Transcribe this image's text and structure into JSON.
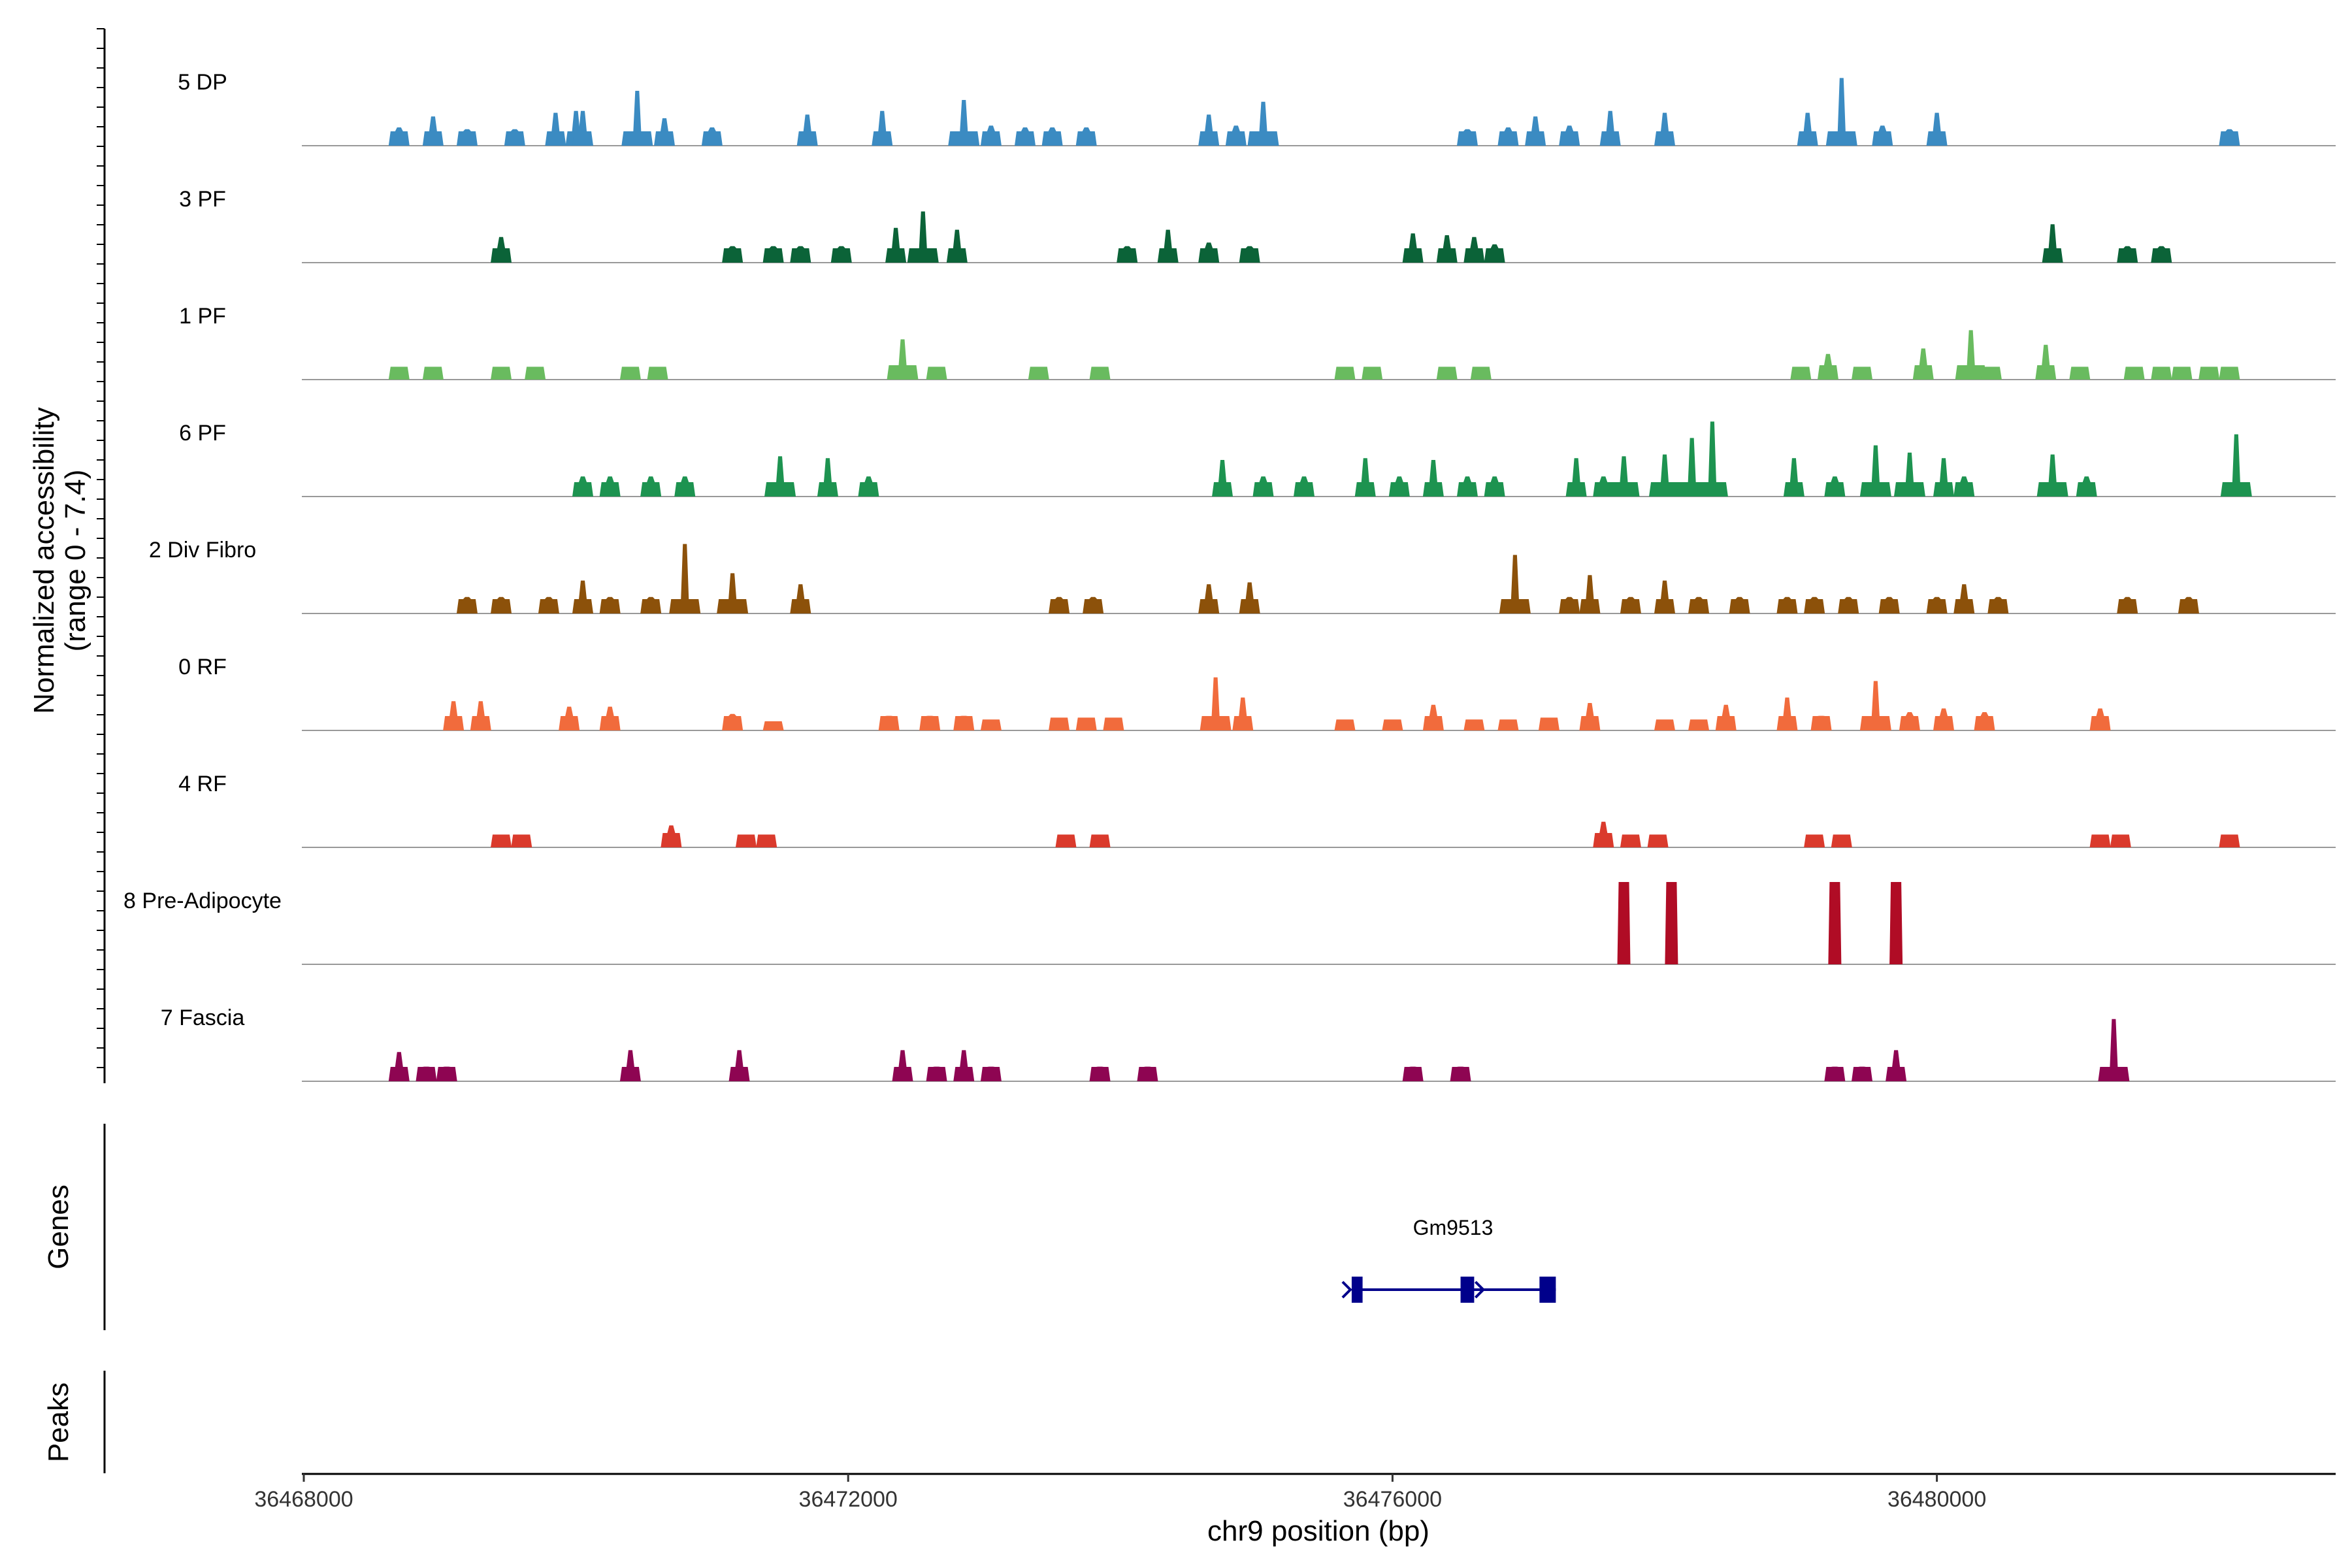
{
  "chart_data": {
    "type": "area",
    "title": "",
    "ylabel": "Normalized accessibility",
    "ylabel_range": "(range 0 - 7.4)",
    "ylim": [
      0,
      7.4
    ],
    "xlabel": "chr9 position (bp)",
    "xlim": [
      36468000,
      36482900
    ],
    "xticks": [
      36468000,
      36472000,
      36476000,
      36480000
    ],
    "xtick_labels": [
      "36468000",
      "36472000",
      "36476000",
      "36480000"
    ],
    "series": [
      {
        "name": "5 DP",
        "color": "#3B8BC2",
        "peaks": [
          [
            36468700,
            2.0
          ],
          [
            36468950,
            3.2
          ],
          [
            36469200,
            1.8
          ],
          [
            36469550,
            1.8
          ],
          [
            36469850,
            3.6
          ],
          [
            36470000,
            3.8
          ],
          [
            36470050,
            3.8
          ],
          [
            36470450,
            6.0
          ],
          [
            36470650,
            3.0
          ],
          [
            36471000,
            2.0
          ],
          [
            36471700,
            3.4
          ],
          [
            36472250,
            3.8
          ],
          [
            36472850,
            5.0
          ],
          [
            36473050,
            2.2
          ],
          [
            36473300,
            2.0
          ],
          [
            36473500,
            2.0
          ],
          [
            36473750,
            2.0
          ],
          [
            36474650,
            3.4
          ],
          [
            36474850,
            2.2
          ],
          [
            36475050,
            4.8
          ],
          [
            36476550,
            1.8
          ],
          [
            36476850,
            2.0
          ],
          [
            36477050,
            3.2
          ],
          [
            36477300,
            2.2
          ],
          [
            36477600,
            3.8
          ],
          [
            36478000,
            3.6
          ],
          [
            36479050,
            3.6
          ],
          [
            36479300,
            7.4
          ],
          [
            36479600,
            2.2
          ],
          [
            36480000,
            3.6
          ],
          [
            36482150,
            1.8
          ]
        ]
      },
      {
        "name": "3 PF",
        "color": "#0B6338",
        "peaks": [
          [
            36469450,
            2.8
          ],
          [
            36471150,
            1.8
          ],
          [
            36471450,
            1.8
          ],
          [
            36471650,
            1.8
          ],
          [
            36471950,
            1.8
          ],
          [
            36472350,
            3.8
          ],
          [
            36472550,
            5.6
          ],
          [
            36472800,
            3.6
          ],
          [
            36474050,
            1.8
          ],
          [
            36474350,
            3.6
          ],
          [
            36474650,
            2.2
          ],
          [
            36474950,
            1.8
          ],
          [
            36476150,
            3.2
          ],
          [
            36476400,
            3.0
          ],
          [
            36476600,
            2.8
          ],
          [
            36476750,
            2.0
          ],
          [
            36480850,
            4.2
          ],
          [
            36481400,
            1.8
          ],
          [
            36481650,
            1.8
          ]
        ]
      },
      {
        "name": "1 PF",
        "color": "#69BB5F",
        "peaks": [
          [
            36468700,
            1.4
          ],
          [
            36468950,
            1.4
          ],
          [
            36469450,
            1.4
          ],
          [
            36469700,
            1.4
          ],
          [
            36470400,
            1.4
          ],
          [
            36470600,
            1.4
          ],
          [
            36472400,
            4.4
          ],
          [
            36472650,
            1.4
          ],
          [
            36473400,
            1.4
          ],
          [
            36473850,
            1.4
          ],
          [
            36475650,
            1.4
          ],
          [
            36475850,
            1.4
          ],
          [
            36476400,
            1.4
          ],
          [
            36476650,
            1.4
          ],
          [
            36479000,
            1.4
          ],
          [
            36479200,
            2.8
          ],
          [
            36479450,
            1.4
          ],
          [
            36479900,
            3.4
          ],
          [
            36480250,
            5.4
          ],
          [
            36480400,
            1.4
          ],
          [
            36480800,
            3.8
          ],
          [
            36481050,
            1.4
          ],
          [
            36481450,
            1.4
          ],
          [
            36481650,
            1.4
          ],
          [
            36481800,
            1.4
          ],
          [
            36482000,
            1.4
          ],
          [
            36482150,
            1.4
          ]
        ]
      },
      {
        "name": "6 PF",
        "color": "#1D9350",
        "peaks": [
          [
            36470050,
            2.2
          ],
          [
            36470250,
            2.2
          ],
          [
            36470550,
            2.2
          ],
          [
            36470800,
            2.2
          ],
          [
            36471500,
            4.4
          ],
          [
            36471850,
            4.2
          ],
          [
            36472150,
            2.2
          ],
          [
            36474750,
            4.0
          ],
          [
            36475050,
            2.2
          ],
          [
            36475350,
            2.2
          ],
          [
            36475800,
            4.2
          ],
          [
            36476050,
            2.2
          ],
          [
            36476300,
            4.0
          ],
          [
            36476550,
            2.2
          ],
          [
            36476750,
            2.2
          ],
          [
            36477350,
            4.2
          ],
          [
            36477550,
            2.2
          ],
          [
            36477700,
            4.4
          ],
          [
            36478000,
            4.6
          ],
          [
            36478200,
            6.4
          ],
          [
            36478350,
            8.2
          ],
          [
            36478950,
            4.2
          ],
          [
            36479250,
            2.2
          ],
          [
            36479550,
            5.6
          ],
          [
            36479800,
            4.8
          ],
          [
            36480050,
            4.2
          ],
          [
            36480200,
            2.2
          ],
          [
            36480850,
            4.6
          ],
          [
            36481100,
            2.2
          ],
          [
            36482200,
            6.8
          ]
        ]
      },
      {
        "name": "2 Div Fibro",
        "color": "#8C510A",
        "peaks": [
          [
            36469200,
            1.8
          ],
          [
            36469450,
            1.8
          ],
          [
            36469800,
            1.8
          ],
          [
            36470050,
            3.6
          ],
          [
            36470250,
            1.8
          ],
          [
            36470550,
            1.8
          ],
          [
            36470800,
            7.6
          ],
          [
            36471150,
            4.4
          ],
          [
            36471650,
            3.2
          ],
          [
            36473550,
            1.8
          ],
          [
            36473800,
            1.8
          ],
          [
            36474650,
            3.2
          ],
          [
            36474950,
            3.4
          ],
          [
            36476900,
            6.4
          ],
          [
            36477300,
            1.8
          ],
          [
            36477450,
            4.2
          ],
          [
            36477750,
            1.8
          ],
          [
            36478000,
            3.6
          ],
          [
            36478250,
            1.8
          ],
          [
            36478550,
            1.8
          ],
          [
            36478900,
            1.8
          ],
          [
            36479100,
            1.8
          ],
          [
            36479350,
            1.8
          ],
          [
            36479650,
            1.8
          ],
          [
            36480000,
            1.8
          ],
          [
            36480200,
            3.2
          ],
          [
            36480450,
            1.8
          ],
          [
            36481400,
            1.8
          ],
          [
            36481850,
            1.8
          ]
        ]
      },
      {
        "name": "0 RF",
        "color": "#F16B3C",
        "peaks": [
          [
            36469100,
            3.2
          ],
          [
            36469300,
            3.2
          ],
          [
            36469950,
            2.6
          ],
          [
            36470250,
            2.6
          ],
          [
            36471150,
            1.8
          ],
          [
            36471450,
            1.0
          ],
          [
            36472300,
            1.6
          ],
          [
            36472600,
            1.6
          ],
          [
            36472850,
            1.6
          ],
          [
            36473050,
            1.2
          ],
          [
            36473550,
            1.4
          ],
          [
            36473750,
            1.4
          ],
          [
            36473950,
            1.4
          ],
          [
            36474700,
            5.8
          ],
          [
            36474900,
            3.6
          ],
          [
            36475650,
            1.2
          ],
          [
            36476000,
            1.2
          ],
          [
            36476300,
            2.8
          ],
          [
            36476600,
            1.2
          ],
          [
            36476850,
            1.2
          ],
          [
            36477150,
            1.4
          ],
          [
            36477450,
            3.0
          ],
          [
            36478000,
            1.2
          ],
          [
            36478250,
            1.2
          ],
          [
            36478450,
            2.8
          ],
          [
            36478900,
            3.6
          ],
          [
            36479150,
            1.6
          ],
          [
            36479550,
            5.4
          ],
          [
            36479800,
            2.0
          ],
          [
            36480050,
            2.4
          ],
          [
            36480350,
            2.0
          ],
          [
            36481200,
            2.4
          ]
        ]
      },
      {
        "name": "4 RF",
        "color": "#DA3A2C",
        "peaks": [
          [
            36469450,
            1.4
          ],
          [
            36469600,
            1.4
          ],
          [
            36470700,
            2.4
          ],
          [
            36471250,
            1.4
          ],
          [
            36471400,
            1.4
          ],
          [
            36473600,
            1.4
          ],
          [
            36473850,
            1.4
          ],
          [
            36477550,
            2.8
          ],
          [
            36477750,
            1.4
          ],
          [
            36477950,
            1.4
          ],
          [
            36479100,
            1.4
          ],
          [
            36479300,
            1.4
          ],
          [
            36481200,
            1.4
          ],
          [
            36481350,
            1.4
          ],
          [
            36482150,
            1.4
          ]
        ]
      },
      {
        "name": "8 Pre-Adipocyte",
        "color": "#B00C25",
        "peaks": [
          [
            36477700,
            9.0
          ],
          [
            36478050,
            9.0
          ],
          [
            36479250,
            9.0
          ],
          [
            36479700,
            9.0
          ]
        ]
      },
      {
        "name": "7 Fascia",
        "color": "#8E0552",
        "peaks": [
          [
            36468700,
            3.2
          ],
          [
            36468900,
            1.6
          ],
          [
            36469050,
            1.6
          ],
          [
            36470400,
            3.4
          ],
          [
            36471200,
            3.4
          ],
          [
            36472400,
            3.4
          ],
          [
            36472650,
            1.6
          ],
          [
            36472850,
            3.4
          ],
          [
            36473050,
            1.6
          ],
          [
            36473850,
            1.6
          ],
          [
            36474200,
            1.6
          ],
          [
            36476150,
            1.6
          ],
          [
            36476500,
            1.6
          ],
          [
            36479250,
            1.6
          ],
          [
            36479450,
            1.6
          ],
          [
            36479700,
            3.4
          ],
          [
            36481300,
            6.8
          ]
        ]
      }
    ],
    "genes": [
      {
        "name": "Gm9513",
        "start": 36475700,
        "end": 36477200,
        "exons": [
          [
            36475700,
            36475780
          ],
          [
            36476500,
            36476600
          ],
          [
            36477080,
            36477200
          ]
        ]
      }
    ],
    "panels": [
      "Genes",
      "Peaks"
    ]
  }
}
